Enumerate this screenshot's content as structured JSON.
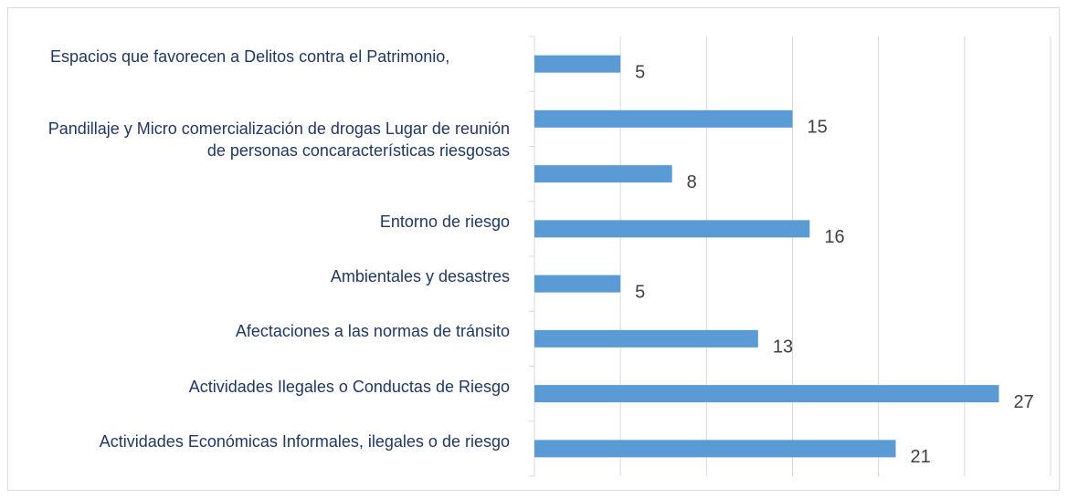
{
  "chart_data": {
    "type": "hbar",
    "categories": [
      "Espacios que favorecen a Delitos contra el Patrimonio,",
      "Pandillaje y Micro comercialización de drogas Lugar de reunión de personas concaracterísticas riesgosas",
      null,
      "Entorno de riesgo",
      "Ambientales y desastres",
      "Afectaciones a las normas de tránsito",
      "Actividades Ilegales o Conductas de Riesgo",
      "Actividades Económicas Informales, ilegales o de riesgo"
    ],
    "values": [
      5,
      15,
      8,
      16,
      5,
      13,
      27,
      21
    ],
    "color": "#5b9bd5",
    "xlim": [
      0,
      30
    ],
    "xticks": [
      0,
      5,
      10,
      15,
      20,
      25,
      30
    ],
    "grid": true
  }
}
